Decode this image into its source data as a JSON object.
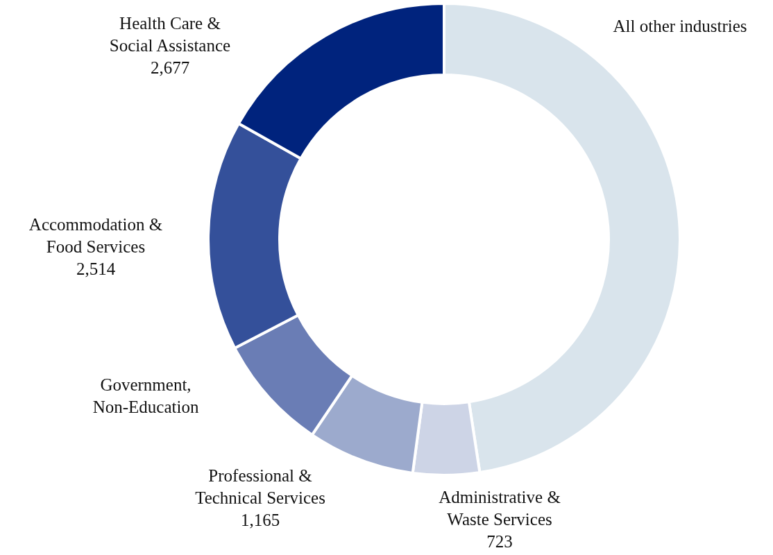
{
  "chart_data": {
    "type": "donut",
    "categories": [
      "All other industries",
      "Administrative & Waste Services",
      "Professional & Technical Services",
      "Government, Non-Education",
      "Accommodation & Food Services",
      "Health Care & Social Assistance"
    ],
    "values": [
      7570,
      723,
      1165,
      1260,
      2514,
      2677
    ],
    "value_labels": [
      null,
      "723",
      "1,165",
      null,
      "2,514",
      "2,677"
    ],
    "colors": [
      "#d9e4ec",
      "#cdd4e6",
      "#9caacd",
      "#6a7db5",
      "#34509a",
      "#00237d"
    ]
  }
}
